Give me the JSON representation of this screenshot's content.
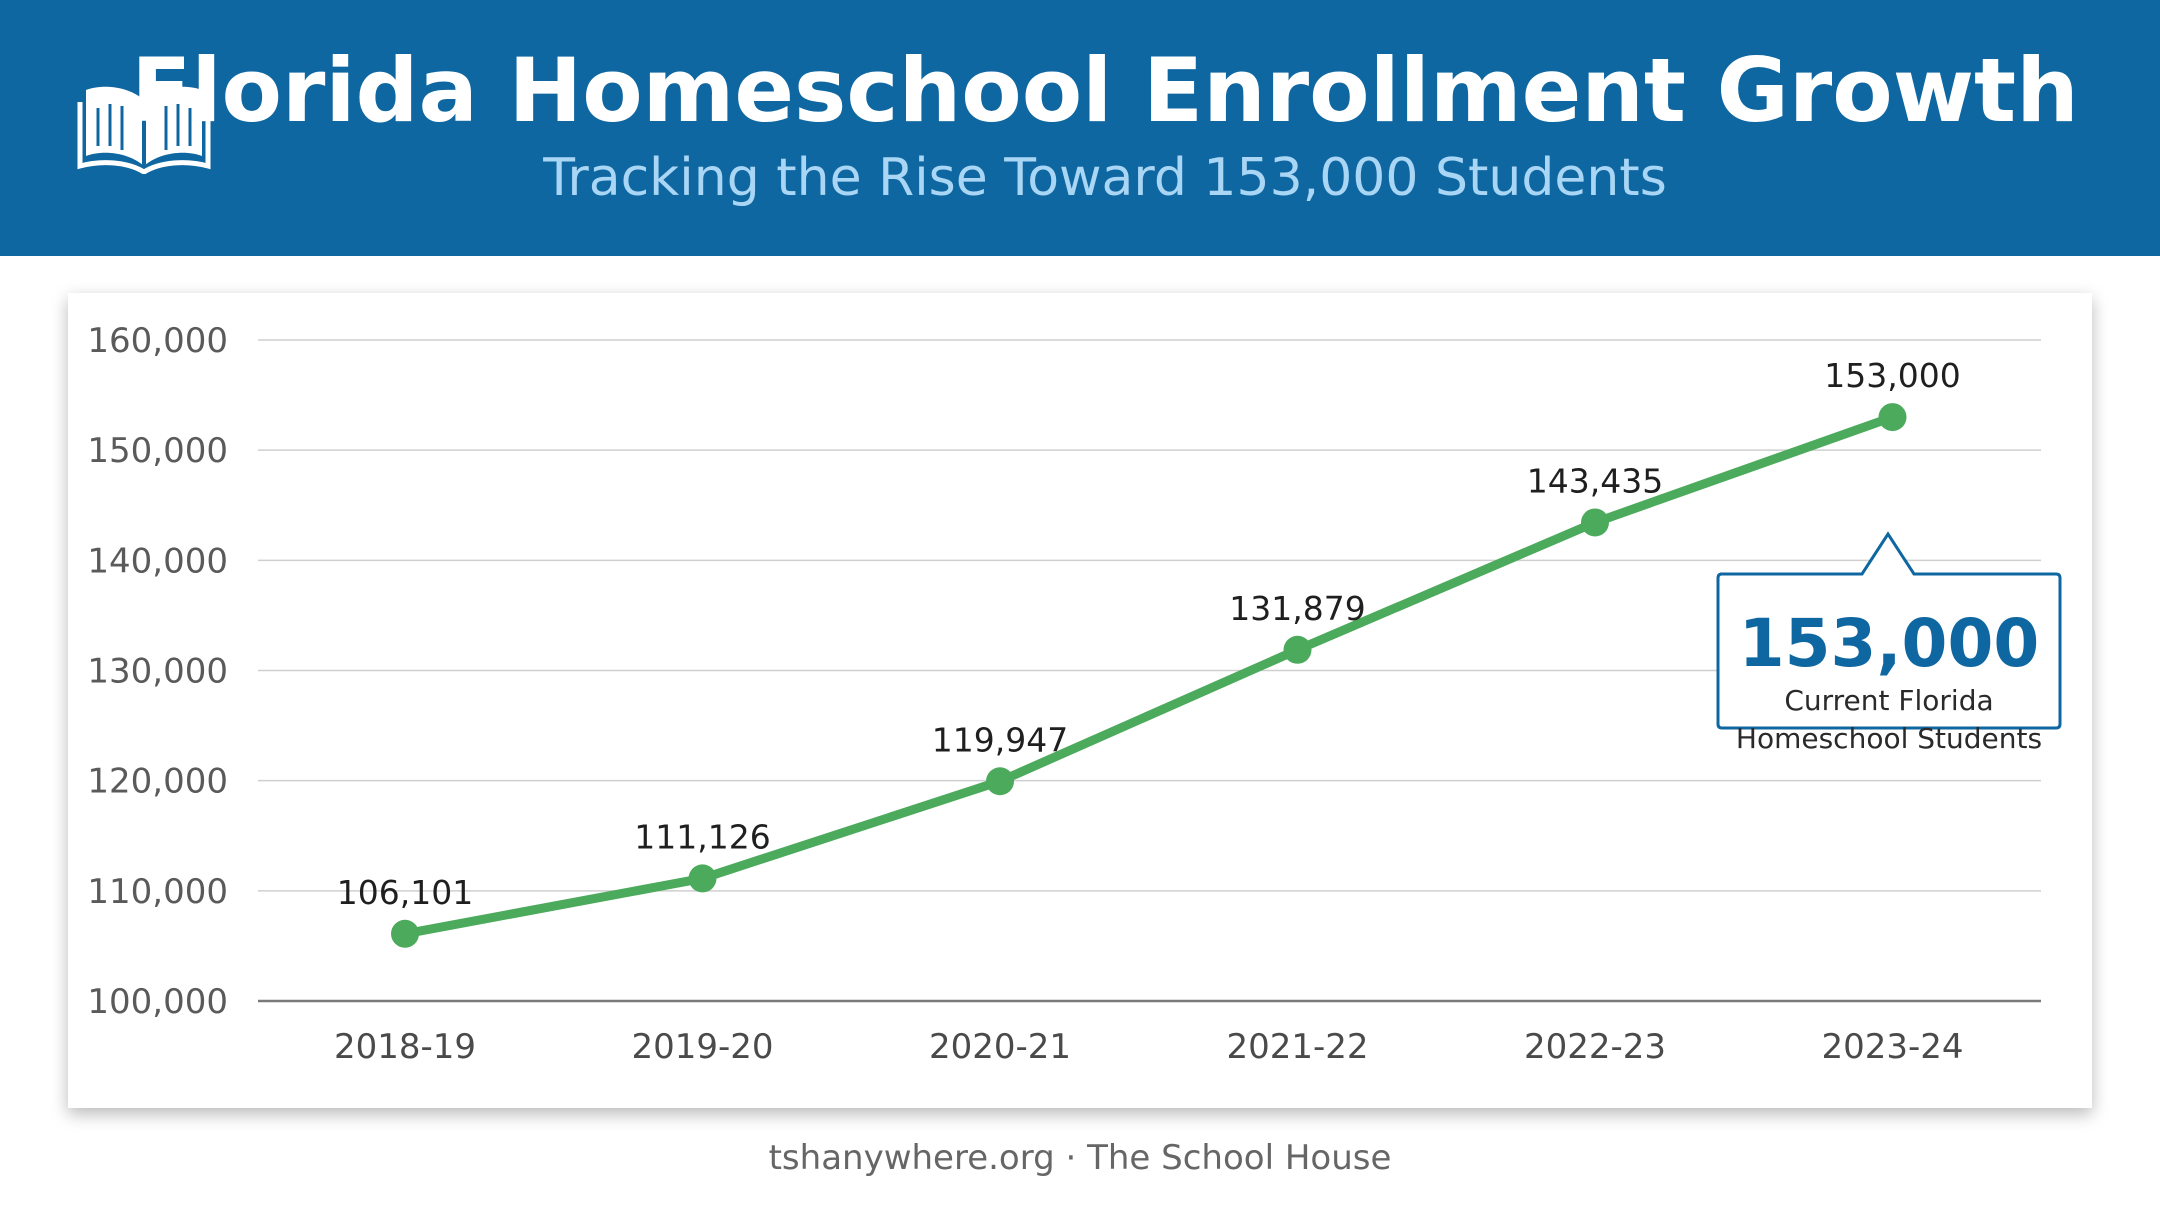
{
  "header": {
    "title": "Florida Homeschool Enrollment Growth",
    "subtitle": "Tracking the Rise Toward 153,000 Students",
    "icon": "open-book-icon"
  },
  "chart_data": {
    "type": "line",
    "title": "",
    "xlabel": "",
    "ylabel": "",
    "categories": [
      "2018-19",
      "2019-20",
      "2020-21",
      "2021-22",
      "2022-23",
      "2023-24"
    ],
    "series": [
      {
        "values": [
          106101,
          111126,
          119947,
          131879,
          143435,
          153000
        ]
      }
    ],
    "data_labels": [
      "106,101",
      "111,126",
      "119,947",
      "131,879",
      "143,435",
      "153,000"
    ],
    "ylim": [
      100000,
      160000
    ],
    "yticks": [
      100000,
      110000,
      120000,
      130000,
      140000,
      150000,
      160000
    ],
    "ytick_labels": [
      "100,000",
      "110,000",
      "120,000",
      "130,000",
      "140,000",
      "150,000",
      "160,000"
    ],
    "grid": true,
    "legend": "none",
    "colors": {
      "line": "#4caa5c",
      "grid": "#cfcfcf",
      "axis": "#7a7a7a"
    }
  },
  "callout": {
    "value": "153,000",
    "label": "Current Florida Homeschool Students",
    "border_color": "#0f67a1"
  },
  "footer": {
    "text": "tshanywhere.org · The School House"
  },
  "colors": {
    "header_bg": "#0f67a1",
    "subtitle": "#a9d6f5",
    "accent": "#4caa5c"
  }
}
